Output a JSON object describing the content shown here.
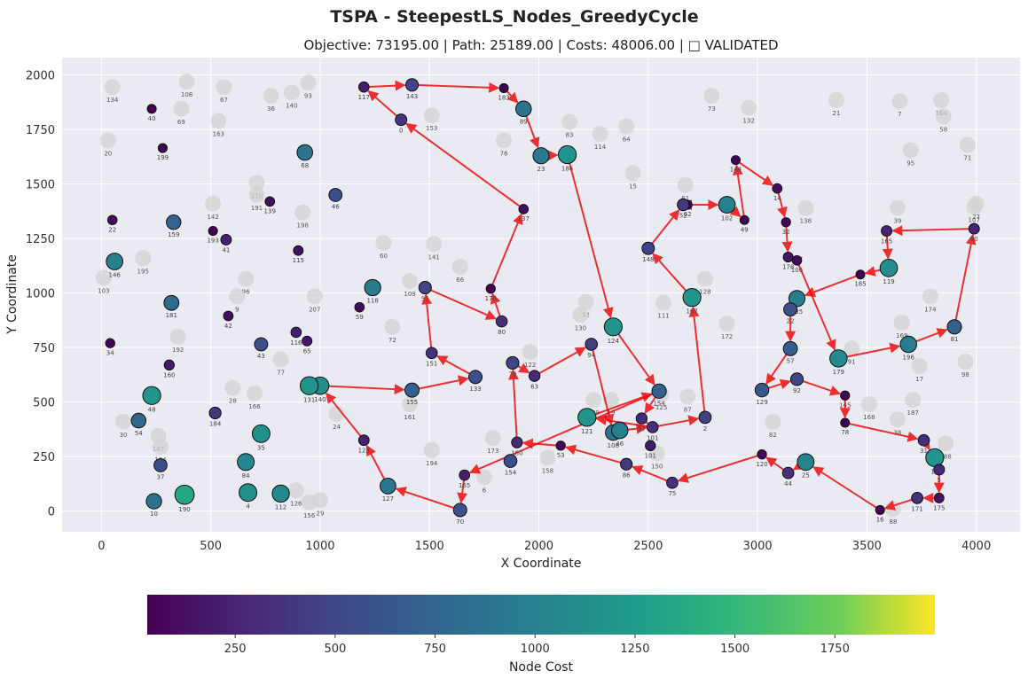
{
  "chart_data": {
    "type": "scatter",
    "title": "TSPA - SteepestLS_Nodes_GreedyCycle",
    "subtitle": "Objective: 73195.00 | Path: 25189.00 | Costs: 48006.00 | □ VALIDATED",
    "xlabel": "X Coordinate",
    "ylabel": "Y Coordinate",
    "xlim": [
      -180,
      4200
    ],
    "ylim": [
      -95,
      2080
    ],
    "xticks": [
      0,
      500,
      1000,
      1500,
      2000,
      2500,
      3000,
      3500,
      4000
    ],
    "yticks": [
      0,
      250,
      500,
      750,
      1000,
      1250,
      1500,
      1750,
      2000
    ],
    "grid": true,
    "colorbar": {
      "label": "Node Cost",
      "range": [
        30,
        2000
      ],
      "ticks": [
        250,
        500,
        750,
        1000,
        1250,
        1500,
        1750
      ],
      "colormap": "viridis"
    },
    "unselected_nodes": [
      {
        "id": 134,
        "x": 50,
        "y": 1945
      },
      {
        "id": 108,
        "x": 390,
        "y": 1970
      },
      {
        "id": 67,
        "x": 560,
        "y": 1945
      },
      {
        "id": 36,
        "x": 775,
        "y": 1905
      },
      {
        "id": 140,
        "x": 870,
        "y": 1920
      },
      {
        "id": 93,
        "x": 945,
        "y": 1965
      },
      {
        "id": 69,
        "x": 365,
        "y": 1845
      },
      {
        "id": 163,
        "x": 535,
        "y": 1790
      },
      {
        "id": 20,
        "x": 30,
        "y": 1700
      },
      {
        "id": 153,
        "x": 1510,
        "y": 1815
      },
      {
        "id": 76,
        "x": 1840,
        "y": 1700
      },
      {
        "id": 83,
        "x": 2140,
        "y": 1785
      },
      {
        "id": 114,
        "x": 2280,
        "y": 1730
      },
      {
        "id": 64,
        "x": 2400,
        "y": 1765
      },
      {
        "id": 73,
        "x": 2790,
        "y": 1905
      },
      {
        "id": 132,
        "x": 2960,
        "y": 1850
      },
      {
        "id": 21,
        "x": 3360,
        "y": 1885
      },
      {
        "id": 7,
        "x": 3650,
        "y": 1880
      },
      {
        "id": 164,
        "x": 3840,
        "y": 1885
      },
      {
        "id": 58,
        "x": 3850,
        "y": 1810
      },
      {
        "id": 71,
        "x": 3960,
        "y": 1680
      },
      {
        "id": 95,
        "x": 3700,
        "y": 1655
      },
      {
        "id": 15,
        "x": 2430,
        "y": 1550
      },
      {
        "id": 61,
        "x": 2670,
        "y": 1495
      },
      {
        "id": 138,
        "x": 3220,
        "y": 1390
      },
      {
        "id": 39,
        "x": 3640,
        "y": 1390
      },
      {
        "id": 107,
        "x": 3990,
        "y": 1395
      },
      {
        "id": 27,
        "x": 4000,
        "y": 1410
      },
      {
        "id": 110,
        "x": 710,
        "y": 1505
      },
      {
        "id": 191,
        "x": 710,
        "y": 1450
      },
      {
        "id": 142,
        "x": 510,
        "y": 1410
      },
      {
        "id": 198,
        "x": 920,
        "y": 1370
      },
      {
        "id": 60,
        "x": 1290,
        "y": 1230
      },
      {
        "id": 141,
        "x": 1520,
        "y": 1225
      },
      {
        "id": 66,
        "x": 1640,
        "y": 1120
      },
      {
        "id": 195,
        "x": 190,
        "y": 1160
      },
      {
        "id": 103,
        "x": 10,
        "y": 1070
      },
      {
        "id": 96,
        "x": 660,
        "y": 1065
      },
      {
        "id": 9,
        "x": 620,
        "y": 985
      },
      {
        "id": 207,
        "x": 975,
        "y": 985
      },
      {
        "id": 109,
        "x": 1410,
        "y": 1055
      },
      {
        "id": 12,
        "x": 2215,
        "y": 960
      },
      {
        "id": 130,
        "x": 2190,
        "y": 900
      },
      {
        "id": 111,
        "x": 2570,
        "y": 955
      },
      {
        "id": 128,
        "x": 2760,
        "y": 1065
      },
      {
        "id": 172,
        "x": 2860,
        "y": 860
      },
      {
        "id": 174,
        "x": 3790,
        "y": 985
      },
      {
        "id": 169,
        "x": 3660,
        "y": 865
      },
      {
        "id": 72,
        "x": 1330,
        "y": 845
      },
      {
        "id": 192,
        "x": 350,
        "y": 800
      },
      {
        "id": 77,
        "x": 820,
        "y": 695
      },
      {
        "id": 122,
        "x": 1960,
        "y": 730
      },
      {
        "id": 17,
        "x": 3740,
        "y": 665
      },
      {
        "id": 98,
        "x": 3950,
        "y": 685
      },
      {
        "id": 91,
        "x": 3430,
        "y": 745
      },
      {
        "id": 28,
        "x": 600,
        "y": 565
      },
      {
        "id": 166,
        "x": 700,
        "y": 540
      },
      {
        "id": 161,
        "x": 1410,
        "y": 490
      },
      {
        "id": 24,
        "x": 1075,
        "y": 445
      },
      {
        "id": 189,
        "x": 2250,
        "y": 510
      },
      {
        "id": 19,
        "x": 2330,
        "y": 510
      },
      {
        "id": 125,
        "x": 2560,
        "y": 535
      },
      {
        "id": 87,
        "x": 2680,
        "y": 525
      },
      {
        "id": 187,
        "x": 3710,
        "y": 510
      },
      {
        "id": 168,
        "x": 3510,
        "y": 490
      },
      {
        "id": 38,
        "x": 3640,
        "y": 420
      },
      {
        "id": 82,
        "x": 3070,
        "y": 410
      },
      {
        "id": 30,
        "x": 100,
        "y": 410
      },
      {
        "id": 147,
        "x": 260,
        "y": 345
      },
      {
        "id": 104,
        "x": 270,
        "y": 295
      },
      {
        "id": 173,
        "x": 1790,
        "y": 335
      },
      {
        "id": 194,
        "x": 1510,
        "y": 280
      },
      {
        "id": 6,
        "x": 1750,
        "y": 155
      },
      {
        "id": 158,
        "x": 2040,
        "y": 245
      },
      {
        "id": 150,
        "x": 2540,
        "y": 265
      },
      {
        "id": 188,
        "x": 3860,
        "y": 310
      },
      {
        "id": 126,
        "x": 890,
        "y": 95
      },
      {
        "id": 156,
        "x": 950,
        "y": 40
      },
      {
        "id": 29,
        "x": 1000,
        "y": 50
      },
      {
        "id": 88,
        "x": 3620,
        "y": 10
      }
    ],
    "selected_nodes": [
      {
        "id": 117,
        "x": 1200,
        "y": 1945,
        "cost": 210
      },
      {
        "id": 143,
        "x": 1420,
        "y": 1955,
        "cost": 490
      },
      {
        "id": 183,
        "x": 1840,
        "y": 1940,
        "cost": 40
      },
      {
        "id": 89,
        "x": 1930,
        "y": 1845,
        "cost": 870
      },
      {
        "id": 0,
        "x": 1370,
        "y": 1795,
        "cost": 370
      },
      {
        "id": 23,
        "x": 2010,
        "y": 1630,
        "cost": 940
      },
      {
        "id": 186,
        "x": 2130,
        "y": 1635,
        "cost": 1180
      },
      {
        "id": 137,
        "x": 1930,
        "y": 1385,
        "cost": 90
      },
      {
        "id": 144,
        "x": 2900,
        "y": 1610,
        "cost": 40
      },
      {
        "id": 14,
        "x": 3090,
        "y": 1480,
        "cost": 110
      },
      {
        "id": 62,
        "x": 2680,
        "y": 1405,
        "cost": 50
      },
      {
        "id": 102,
        "x": 2860,
        "y": 1405,
        "cost": 1010
      },
      {
        "id": 49,
        "x": 2940,
        "y": 1335,
        "cost": 40
      },
      {
        "id": 52,
        "x": 2660,
        "y": 1405,
        "cost": 400
      },
      {
        "id": 32,
        "x": 3130,
        "y": 1325,
        "cost": 60
      },
      {
        "id": 165,
        "x": 3590,
        "y": 1285,
        "cost": 250
      },
      {
        "id": 90,
        "x": 3990,
        "y": 1295,
        "cost": 250
      },
      {
        "id": 178,
        "x": 3140,
        "y": 1165,
        "cost": 150
      },
      {
        "id": 106,
        "x": 3180,
        "y": 1150,
        "cost": 100
      },
      {
        "id": 185,
        "x": 3470,
        "y": 1085,
        "cost": 30
      },
      {
        "id": 119,
        "x": 3600,
        "y": 1115,
        "cost": 1110
      },
      {
        "id": 148,
        "x": 2500,
        "y": 1205,
        "cost": 480
      },
      {
        "id": 167,
        "x": 2700,
        "y": 980,
        "cost": 1170
      },
      {
        "id": 135,
        "x": 3180,
        "y": 975,
        "cost": 950
      },
      {
        "id": 22,
        "x": 3150,
        "y": 925,
        "cost": 590
      },
      {
        "id": 81,
        "x": 3900,
        "y": 845,
        "cost": 710
      },
      {
        "id": 196,
        "x": 3690,
        "y": 765,
        "cost": 980
      },
      {
        "id": 179,
        "x": 3370,
        "y": 700,
        "cost": 1090
      },
      {
        "id": 57,
        "x": 3150,
        "y": 745,
        "cost": 690
      },
      {
        "id": 129,
        "x": 3020,
        "y": 555,
        "cost": 640
      },
      {
        "id": 92,
        "x": 3180,
        "y": 605,
        "cost": 500
      },
      {
        "id": 145,
        "x": 3400,
        "y": 530,
        "cost": 60
      },
      {
        "id": 78,
        "x": 3400,
        "y": 405,
        "cost": 30
      },
      {
        "id": 31,
        "x": 3760,
        "y": 325,
        "cost": 330
      },
      {
        "id": 13,
        "x": 3810,
        "y": 245,
        "cost": 1170
      },
      {
        "id": 5,
        "x": 3830,
        "y": 190,
        "cost": 270
      },
      {
        "id": 175,
        "x": 3830,
        "y": 60,
        "cost": 130
      },
      {
        "id": 171,
        "x": 3730,
        "y": 60,
        "cost": 340
      },
      {
        "id": 16,
        "x": 3560,
        "y": 5,
        "cost": 40
      },
      {
        "id": 25,
        "x": 3220,
        "y": 225,
        "cost": 1020
      },
      {
        "id": 44,
        "x": 3140,
        "y": 175,
        "cost": 340
      },
      {
        "id": 120,
        "x": 3020,
        "y": 260,
        "cost": 70
      },
      {
        "id": 75,
        "x": 2610,
        "y": 130,
        "cost": 330
      },
      {
        "id": 86,
        "x": 2400,
        "y": 215,
        "cost": 400
      },
      {
        "id": 53,
        "x": 2100,
        "y": 300,
        "cost": 70
      },
      {
        "id": 101,
        "x": 2510,
        "y": 300,
        "cost": 190
      },
      {
        "id": 108,
        "x": 2340,
        "y": 360,
        "cost": 880
      },
      {
        "id": 46,
        "x": 2370,
        "y": 370,
        "cost": 980
      },
      {
        "id": 121,
        "x": 2220,
        "y": 430,
        "cost": 1180
      },
      {
        "id": 97,
        "x": 2470,
        "y": 425,
        "cost": 300
      },
      {
        "id": 101,
        "x": 2520,
        "y": 385,
        "cost": 330
      },
      {
        "id": 2,
        "x": 2760,
        "y": 430,
        "cost": 460
      },
      {
        "id": 154,
        "x": 2550,
        "y": 550,
        "cost": 720
      },
      {
        "id": 94,
        "x": 2240,
        "y": 765,
        "cost": 430
      },
      {
        "id": 124,
        "x": 2340,
        "y": 845,
        "cost": 1170
      },
      {
        "id": 63,
        "x": 1980,
        "y": 620,
        "cost": 300
      },
      {
        "id": 79,
        "x": 1880,
        "y": 680,
        "cost": 490
      },
      {
        "id": 80,
        "x": 1830,
        "y": 870,
        "cost": 320
      },
      {
        "id": 176,
        "x": 1780,
        "y": 1020,
        "cost": 60
      },
      {
        "id": 51,
        "x": 1480,
        "y": 1025,
        "cost": 490
      },
      {
        "id": 151,
        "x": 1510,
        "y": 725,
        "cost": 330
      },
      {
        "id": 133,
        "x": 1710,
        "y": 615,
        "cost": 590
      },
      {
        "id": 155,
        "x": 1420,
        "y": 555,
        "cost": 700
      },
      {
        "id": 140,
        "x": 1000,
        "y": 575,
        "cost": 1110
      },
      {
        "id": 131,
        "x": 950,
        "y": 575,
        "cost": 1180
      },
      {
        "id": 65,
        "x": 940,
        "y": 780,
        "cost": 150
      },
      {
        "id": 116,
        "x": 890,
        "y": 820,
        "cost": 220
      },
      {
        "id": 43,
        "x": 730,
        "y": 765,
        "cost": 580
      },
      {
        "id": 42,
        "x": 580,
        "y": 895,
        "cost": 120
      },
      {
        "id": 59,
        "x": 1180,
        "y": 935,
        "cost": 100
      },
      {
        "id": 118,
        "x": 1240,
        "y": 1025,
        "cost": 960
      },
      {
        "id": 46,
        "x": 1070,
        "y": 1450,
        "cost": 560
      },
      {
        "id": 68,
        "x": 930,
        "y": 1645,
        "cost": 880
      },
      {
        "id": 139,
        "x": 770,
        "y": 1420,
        "cost": 110
      },
      {
        "id": 115,
        "x": 900,
        "y": 1195,
        "cost": 130
      },
      {
        "id": 41,
        "x": 570,
        "y": 1245,
        "cost": 240
      },
      {
        "id": 193,
        "x": 510,
        "y": 1285,
        "cost": 40
      },
      {
        "id": 159,
        "x": 330,
        "y": 1325,
        "cost": 740
      },
      {
        "id": 199,
        "x": 280,
        "y": 1665,
        "cost": 50
      },
      {
        "id": 40,
        "x": 230,
        "y": 1845,
        "cost": 40
      },
      {
        "id": 22,
        "x": 50,
        "y": 1335,
        "cost": 90
      },
      {
        "id": 146,
        "x": 60,
        "y": 1145,
        "cost": 1000
      },
      {
        "id": 181,
        "x": 320,
        "y": 955,
        "cost": 790
      },
      {
        "id": 34,
        "x": 40,
        "y": 770,
        "cost": 70
      },
      {
        "id": 160,
        "x": 310,
        "y": 670,
        "cost": 180
      },
      {
        "id": 48,
        "x": 230,
        "y": 530,
        "cost": 1180
      },
      {
        "id": 54,
        "x": 170,
        "y": 415,
        "cost": 760
      },
      {
        "id": 37,
        "x": 270,
        "y": 210,
        "cost": 560
      },
      {
        "id": 10,
        "x": 240,
        "y": 45,
        "cost": 850
      },
      {
        "id": 190,
        "x": 380,
        "y": 75,
        "cost": 1340
      },
      {
        "id": 4,
        "x": 670,
        "y": 85,
        "cost": 1150
      },
      {
        "id": 112,
        "x": 820,
        "y": 80,
        "cost": 1070
      },
      {
        "id": 84,
        "x": 660,
        "y": 225,
        "cost": 1040
      },
      {
        "id": 184,
        "x": 520,
        "y": 450,
        "cost": 390
      },
      {
        "id": 35,
        "x": 730,
        "y": 355,
        "cost": 1140
      },
      {
        "id": 123,
        "x": 1200,
        "y": 325,
        "cost": 230
      },
      {
        "id": 127,
        "x": 1310,
        "y": 115,
        "cost": 900
      },
      {
        "id": 70,
        "x": 1640,
        "y": 5,
        "cost": 600
      },
      {
        "id": 165,
        "x": 1660,
        "y": 165,
        "cost": 220
      },
      {
        "id": 154,
        "x": 1870,
        "y": 230,
        "cost": 550
      },
      {
        "id": 180,
        "x": 1900,
        "y": 315,
        "cost": 280
      }
    ],
    "path": [
      [
        117,
        143
      ],
      [
        143,
        183
      ],
      [
        183,
        89
      ],
      [
        89,
        23
      ],
      [
        23,
        186
      ],
      [
        186,
        124
      ],
      [
        124,
        154
      ],
      [
        154,
        97
      ],
      [
        97,
        101
      ],
      [
        101,
        2
      ],
      [
        2,
        167
      ],
      [
        167,
        148
      ],
      [
        148,
        52
      ],
      [
        52,
        62
      ],
      [
        62,
        102
      ],
      [
        102,
        49
      ],
      [
        49,
        144
      ],
      [
        144,
        14
      ],
      [
        14,
        32
      ],
      [
        32,
        178
      ],
      [
        178,
        106
      ],
      [
        106,
        179
      ],
      [
        179,
        196
      ],
      [
        196,
        81
      ],
      [
        81,
        90
      ],
      [
        90,
        165
      ],
      [
        165,
        119
      ],
      [
        119,
        185
      ],
      [
        185,
        135
      ],
      [
        135,
        22
      ],
      [
        22,
        57
      ],
      [
        57,
        129
      ],
      [
        129,
        92
      ],
      [
        92,
        145
      ],
      [
        145,
        78
      ],
      [
        78,
        31
      ],
      [
        31,
        13
      ],
      [
        13,
        5
      ],
      [
        5,
        175
      ],
      [
        175,
        171
      ],
      [
        171,
        16
      ],
      [
        16,
        25
      ],
      [
        25,
        44
      ],
      [
        44,
        120
      ],
      [
        120,
        75
      ],
      [
        75,
        86
      ],
      [
        86,
        53
      ],
      [
        53,
        180
      ],
      [
        180,
        79
      ],
      [
        79,
        63
      ],
      [
        63,
        94
      ],
      [
        94,
        108
      ],
      [
        108,
        46
      ],
      [
        46,
        101
      ],
      [
        101,
        121
      ],
      [
        121,
        154
      ],
      [
        154,
        165
      ],
      [
        165,
        70
      ],
      [
        70,
        127
      ],
      [
        127,
        123
      ],
      [
        123,
        140
      ],
      [
        140,
        155
      ],
      [
        155,
        133
      ],
      [
        133,
        151
      ],
      [
        151,
        51
      ],
      [
        51,
        80
      ],
      [
        80,
        176
      ],
      [
        176,
        137
      ],
      [
        137,
        0
      ],
      [
        0,
        117
      ]
    ]
  }
}
